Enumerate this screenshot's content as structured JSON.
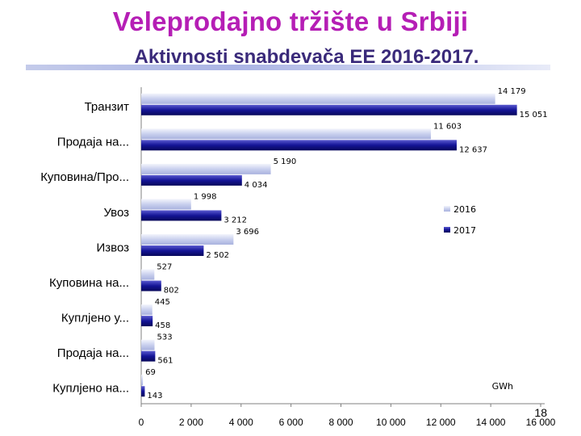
{
  "slide": {
    "title": "Veleprodajno tržište u Srbiji",
    "subtitle": "Aktivnosti snabdevača EE  2016-2017.",
    "page_number": "18"
  },
  "chart_data": {
    "type": "bar",
    "orientation": "horizontal",
    "categories": [
      "Транзит",
      "Продаја на...",
      "Куповина/Про...",
      "Увоз",
      "Извоз",
      "Куповина на...",
      "Куплјено у...",
      "Продаја на...",
      "Куплјено на..."
    ],
    "series": [
      {
        "name": "2016",
        "color": "#c9d0ee",
        "values": [
          14179,
          11603,
          5190,
          1998,
          3696,
          527,
          445,
          533,
          69
        ],
        "labels": [
          "14 179",
          "11 603",
          "5 190",
          "1 998",
          "3 696",
          "527",
          "445",
          "533",
          "69"
        ]
      },
      {
        "name": "2017",
        "color": "#141496",
        "values": [
          15051,
          12637,
          4034,
          3212,
          2502,
          802,
          458,
          561,
          143
        ],
        "labels": [
          "15 051",
          "12 637",
          "4 034",
          "3 212",
          "2 502",
          "802",
          "458",
          "561",
          "143"
        ]
      }
    ],
    "xlim": [
      0,
      16000
    ],
    "x_ticks": [
      0,
      2000,
      4000,
      6000,
      8000,
      10000,
      12000,
      14000,
      16000
    ],
    "x_tick_labels": [
      "0",
      "2 000",
      "4 000",
      "6 000",
      "8 000",
      "10 000",
      "12 000",
      "14 000",
      "16 000"
    ],
    "unit": "GWh",
    "legend_position": "right",
    "grid": false
  }
}
